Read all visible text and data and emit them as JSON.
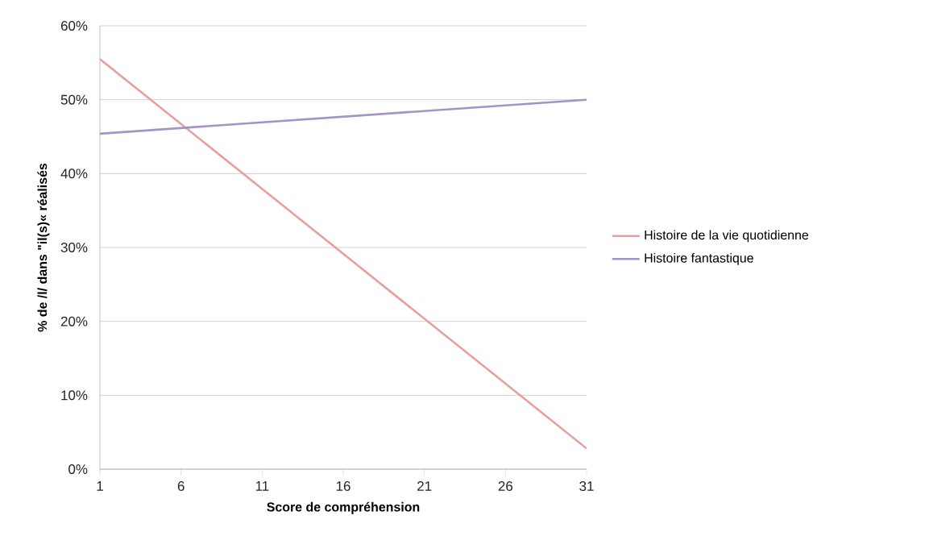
{
  "chart_data": {
    "type": "line",
    "xlabel": "Score de compréhension",
    "ylabel": "% de /l/ dans \"il(s)« réalisés",
    "x": [
      1,
      31
    ],
    "series": [
      {
        "name": "Histoire de la vie quotidienne",
        "color": "#e8a09c",
        "values": [
          55.5,
          2.8
        ]
      },
      {
        "name": "Histoire fantastique",
        "color": "#a593c8",
        "values": [
          45.4,
          50.0
        ]
      }
    ],
    "xlim": [
      1,
      31
    ],
    "xticks": [
      1,
      6,
      11,
      16,
      21,
      26,
      31
    ],
    "ylim": [
      0,
      60
    ],
    "yticks": [
      {
        "value": 0,
        "label": "0%"
      },
      {
        "value": 10,
        "label": "10%"
      },
      {
        "value": 20,
        "label": "20%"
      },
      {
        "value": 30,
        "label": "30%"
      },
      {
        "value": 40,
        "label": "40%"
      },
      {
        "value": 50,
        "label": "50%"
      },
      {
        "value": 60,
        "label": "60%"
      }
    ],
    "grid": "y",
    "legend": "right",
    "marker": "none",
    "line_style": "solid"
  }
}
